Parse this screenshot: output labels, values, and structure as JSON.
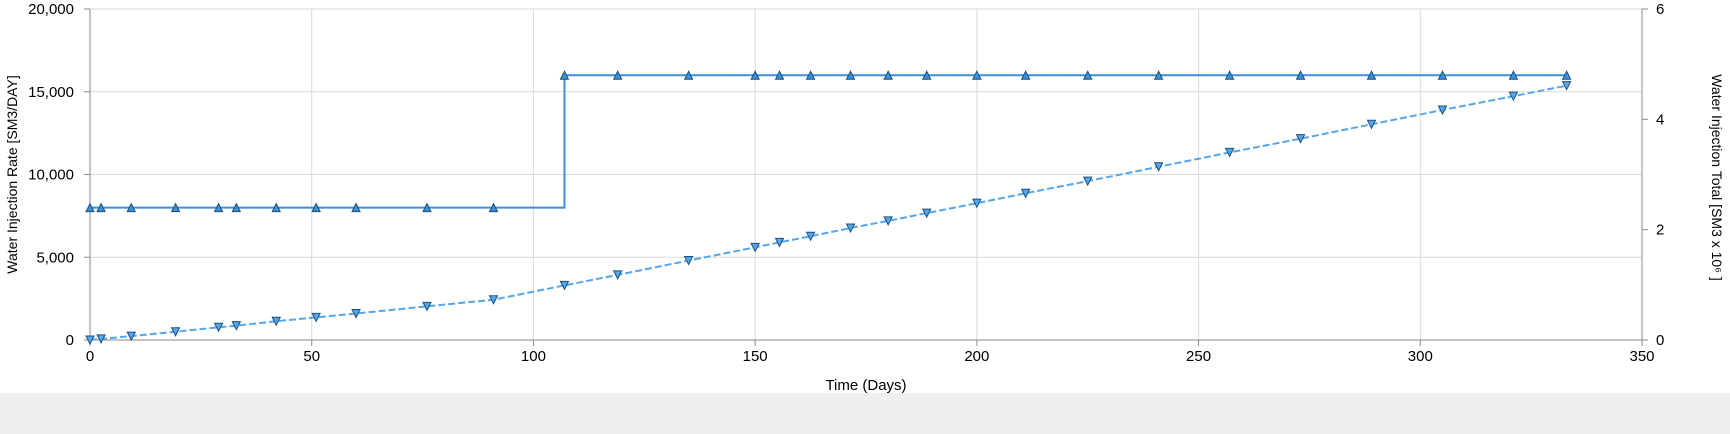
{
  "chart_data": {
    "type": "line",
    "title": "",
    "xlabel": "Time (Days)",
    "ylabel_left": "Water Injection Rate [SM3/DAY]",
    "ylabel_right": "Water Injection Total [SM3 x 10⁶ ]",
    "xlim": [
      0,
      350
    ],
    "ylim_left": [
      0,
      20000
    ],
    "ylim_right": [
      0,
      6
    ],
    "x_ticks": [
      0,
      50,
      100,
      150,
      200,
      250,
      300,
      350
    ],
    "x_tick_labels": [
      "0",
      "50",
      "100",
      "150",
      "200",
      "250",
      "300",
      "350"
    ],
    "y_left_ticks": [
      0,
      5000,
      10000,
      15000,
      20000
    ],
    "y_left_tick_labels": [
      "0",
      "5,000",
      "10,000",
      "15,000",
      "20,000"
    ],
    "y_right_ticks": [
      0,
      2,
      4,
      6
    ],
    "y_right_tick_labels": [
      "0",
      "2",
      "4",
      "6"
    ],
    "grid": true,
    "series": [
      {
        "axis": "left",
        "style": "solid",
        "marker": "triangle-up",
        "color": "#3a8fd6",
        "x": [
          0,
          2.5,
          9.3,
          19.3,
          29,
          33,
          42,
          51,
          60,
          76,
          91,
          107,
          119,
          135,
          150,
          155.5,
          162.5,
          171.5,
          180,
          188.7,
          200,
          211,
          225,
          241,
          257,
          273,
          289,
          305,
          321,
          333
        ],
        "values": [
          8000,
          8000,
          8000,
          8000,
          8000,
          8000,
          8000,
          8000,
          8000,
          8000,
          8000,
          16000,
          16000,
          16000,
          16000,
          16000,
          16000,
          16000,
          16000,
          16000,
          16000,
          16000,
          16000,
          16000,
          16000,
          16000,
          16000,
          16000,
          16000,
          16000
        ],
        "step": true
      },
      {
        "axis": "right",
        "style": "dashed",
        "marker": "triangle-down",
        "color": "#56a6ea",
        "x": [
          0,
          2.5,
          9.3,
          19.3,
          29,
          33,
          42,
          51,
          60,
          76,
          91,
          107,
          119,
          135,
          150,
          155.5,
          162.5,
          171.5,
          180,
          188.7,
          200,
          211,
          225,
          241,
          257,
          273,
          289,
          305,
          321,
          333
        ],
        "values": [
          0.0,
          0.02,
          0.07,
          0.15,
          0.23,
          0.26,
          0.34,
          0.41,
          0.48,
          0.61,
          0.73,
          0.99,
          1.18,
          1.44,
          1.68,
          1.77,
          1.88,
          2.03,
          2.16,
          2.3,
          2.48,
          2.66,
          2.88,
          3.14,
          3.4,
          3.65,
          3.91,
          4.17,
          4.42,
          4.61
        ]
      }
    ]
  }
}
